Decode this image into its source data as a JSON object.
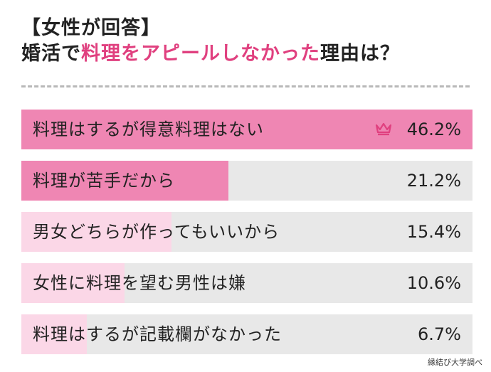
{
  "header": {
    "line1": "【女性が回答】",
    "line2_pre": "婚活で",
    "line2_hl": "料理をアピールしなかった",
    "line2_post": "理由は？"
  },
  "colors": {
    "accent": "#e0407f",
    "bar_strong": "#ef86b3",
    "bar_light": "#fbd7e7",
    "track": "#e8e8e8"
  },
  "rank_icon": "crown-icon",
  "source": "縁結び大学調べ",
  "chart_data": {
    "type": "bar",
    "orientation": "horizontal",
    "title": "婚活で料理をアピールしなかった理由は？",
    "categories": [
      "料理はするが得意料理はない",
      "料理が苦手だから",
      "男女どちらが作ってもいいから",
      "女性に料理を望む男性は嫌",
      "料理はするが記載欄がなかった"
    ],
    "values": [
      46.2,
      21.2,
      15.4,
      10.6,
      6.7
    ],
    "value_labels": [
      "46.2%",
      "21.2%",
      "15.4%",
      "10.6%",
      "6.7%"
    ],
    "xlim": [
      0,
      46.2
    ],
    "grid": false,
    "legend": "none"
  }
}
